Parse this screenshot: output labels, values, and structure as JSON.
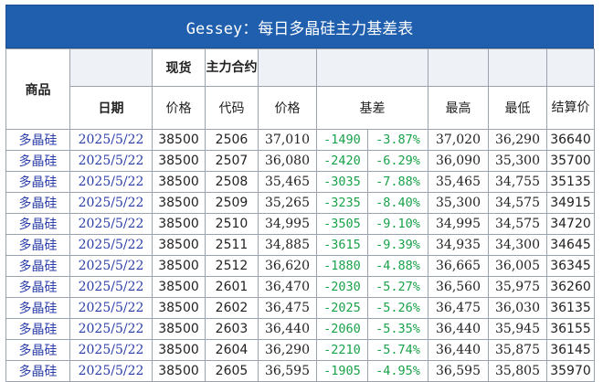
{
  "title": "Gessey：每日多晶硅主力基差表",
  "headers": {
    "product": "商品",
    "date": "日期",
    "spot_top": "现货",
    "spot_bottom": "价格",
    "contract_top": "主力合约",
    "contract_bottom": "代码",
    "price": "价格",
    "basis": "基差",
    "high": "最高",
    "low": "最低",
    "settle": "结算价"
  },
  "rows": [
    {
      "product": "多晶硅",
      "date": "2025/5/22",
      "spot": "38500",
      "code": "2506",
      "price": "37,010",
      "basis": "-1490",
      "basis_pct": "-3.87%",
      "high": "37,020",
      "low": "36,290",
      "settle": "36640"
    },
    {
      "product": "多晶硅",
      "date": "2025/5/22",
      "spot": "38500",
      "code": "2507",
      "price": "36,080",
      "basis": "-2420",
      "basis_pct": "-6.29%",
      "high": "36,090",
      "low": "35,300",
      "settle": "35700"
    },
    {
      "product": "多晶硅",
      "date": "2025/5/22",
      "spot": "38500",
      "code": "2508",
      "price": "35,465",
      "basis": "-3035",
      "basis_pct": "-7.88%",
      "high": "35,465",
      "low": "34,755",
      "settle": "35135"
    },
    {
      "product": "多晶硅",
      "date": "2025/5/22",
      "spot": "38500",
      "code": "2509",
      "price": "35,265",
      "basis": "-3235",
      "basis_pct": "-8.40%",
      "high": "35,300",
      "low": "34,575",
      "settle": "34915"
    },
    {
      "product": "多晶硅",
      "date": "2025/5/22",
      "spot": "38500",
      "code": "2510",
      "price": "34,995",
      "basis": "-3505",
      "basis_pct": "-9.10%",
      "high": "34,995",
      "low": "34,575",
      "settle": "34720"
    },
    {
      "product": "多晶硅",
      "date": "2025/5/22",
      "spot": "38500",
      "code": "2511",
      "price": "34,885",
      "basis": "-3615",
      "basis_pct": "-9.39%",
      "high": "34,935",
      "low": "34,300",
      "settle": "34645"
    },
    {
      "product": "多晶硅",
      "date": "2025/5/22",
      "spot": "38500",
      "code": "2512",
      "price": "36,620",
      "basis": "-1880",
      "basis_pct": "-4.88%",
      "high": "36,665",
      "low": "36,005",
      "settle": "36345"
    },
    {
      "product": "多晶硅",
      "date": "2025/5/22",
      "spot": "38500",
      "code": "2601",
      "price": "36,470",
      "basis": "-2030",
      "basis_pct": "-5.27%",
      "high": "36,560",
      "low": "35,975",
      "settle": "36260"
    },
    {
      "product": "多晶硅",
      "date": "2025/5/22",
      "spot": "38500",
      "code": "2602",
      "price": "36,475",
      "basis": "-2025",
      "basis_pct": "-5.26%",
      "high": "36,475",
      "low": "36,030",
      "settle": "36135"
    },
    {
      "product": "多晶硅",
      "date": "2025/5/22",
      "spot": "38500",
      "code": "2603",
      "price": "36,440",
      "basis": "-2060",
      "basis_pct": "-5.35%",
      "high": "36,440",
      "low": "35,945",
      "settle": "36155"
    },
    {
      "product": "多晶硅",
      "date": "2025/5/22",
      "spot": "38500",
      "code": "2604",
      "price": "36,290",
      "basis": "-2210",
      "basis_pct": "-5.74%",
      "high": "36,440",
      "low": "35,875",
      "settle": "36145"
    },
    {
      "product": "多晶硅",
      "date": "2025/5/22",
      "spot": "38500",
      "code": "2605",
      "price": "36,595",
      "basis": "-1905",
      "basis_pct": "-4.95%",
      "high": "36,595",
      "low": "35,805",
      "settle": "35970"
    }
  ],
  "colors": {
    "title_bg": "#1F5FAE",
    "product_text": "#2B3FA8",
    "basis_text": "#19A24A"
  }
}
